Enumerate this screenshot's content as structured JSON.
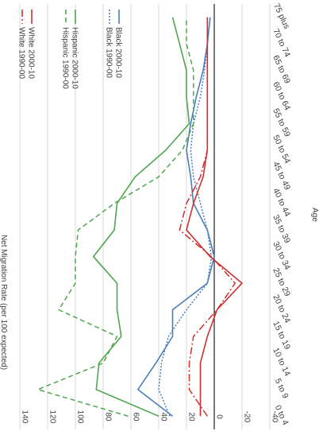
{
  "chart_data": {
    "type": "line",
    "title": "",
    "xlabel": "Age",
    "ylabel": "Net Migration Rate (per 100 expected)",
    "x": [
      "0 to 4",
      "5 to 9",
      "10 to 14",
      "15 to 19",
      "20 to 24",
      "25 to 29",
      "30 to 34",
      "35 to 39",
      "40 to 44",
      "45 to 49",
      "50 to 54",
      "55 to 59",
      "60 to 64",
      "65 to 69",
      "70 to 74",
      "75 plus"
    ],
    "ylim": [
      -40,
      140
    ],
    "yticks": [
      -40,
      -20,
      0,
      20,
      40,
      60,
      80,
      100,
      120,
      140
    ],
    "grid": true,
    "legend_position": "top",
    "series": [
      {
        "name": "Black 2000-10",
        "color": "#4a7ebb",
        "dash": "solid",
        "values": [
          30,
          55,
          42,
          30,
          30,
          5,
          0,
          5,
          15,
          17,
          20,
          17,
          13,
          8,
          5,
          3
        ]
      },
      {
        "name": "Black 1990-00",
        "color": "#4a7ebb",
        "dash": "dot",
        "values": [
          32,
          40,
          38,
          33,
          20,
          5,
          2,
          5,
          10,
          15,
          17,
          15,
          10,
          7,
          5,
          5
        ]
      },
      {
        "name": "Hispanic 2000-10",
        "color": "#4da64d",
        "dash": "solid",
        "values": [
          40,
          85,
          83,
          67,
          70,
          70,
          87,
          72,
          70,
          57,
          35,
          18,
          20,
          20,
          25,
          30
        ]
      },
      {
        "name": "Hispanic 1990-00",
        "color": "#4da64d",
        "dash": "dash",
        "values": [
          62,
          127,
          80,
          70,
          112,
          100,
          100,
          98,
          72,
          40,
          23,
          15,
          15,
          15,
          20,
          20
        ]
      },
      {
        "name": "White 2000-10",
        "color": "#d03030",
        "dash": "solid",
        "values": [
          10,
          10,
          10,
          5,
          -2,
          -20,
          3,
          20,
          15,
          8,
          5,
          5,
          5,
          5,
          5,
          5
        ]
      },
      {
        "name": "White 1990-00",
        "color": "#d03030",
        "dash": "dashdot",
        "values": [
          5,
          18,
          18,
          15,
          -2,
          -15,
          2,
          25,
          20,
          10,
          5,
          5,
          5,
          5,
          5,
          5
        ]
      }
    ]
  }
}
